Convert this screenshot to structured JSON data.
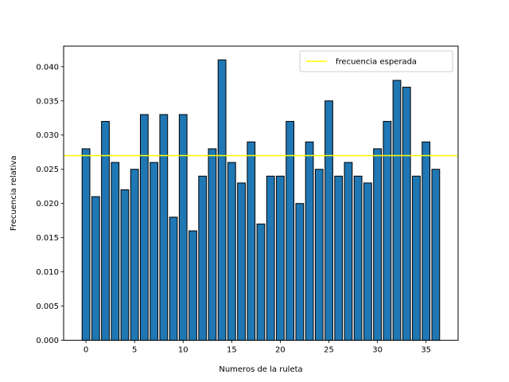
{
  "chart_data": {
    "type": "bar",
    "x": [
      0,
      1,
      2,
      3,
      4,
      5,
      6,
      7,
      8,
      9,
      10,
      11,
      12,
      13,
      14,
      15,
      16,
      17,
      18,
      19,
      20,
      21,
      22,
      23,
      24,
      25,
      26,
      27,
      28,
      29,
      30,
      31,
      32,
      33,
      34,
      35,
      36
    ],
    "values": [
      0.028,
      0.021,
      0.032,
      0.026,
      0.022,
      0.025,
      0.033,
      0.026,
      0.033,
      0.018,
      0.033,
      0.016,
      0.024,
      0.028,
      0.041,
      0.026,
      0.023,
      0.029,
      0.017,
      0.024,
      0.024,
      0.032,
      0.02,
      0.029,
      0.025,
      0.035,
      0.024,
      0.026,
      0.024,
      0.023,
      0.028,
      0.032,
      0.038,
      0.037,
      0.024,
      0.029,
      0.025
    ],
    "xlabel": "Numeros de la ruleta",
    "ylabel": "Frecuencia relativa",
    "xlim": [
      -2.3,
      38.3
    ],
    "ylim": [
      0,
      0.043
    ],
    "xticks": [
      0,
      5,
      10,
      15,
      20,
      25,
      30,
      35
    ],
    "xtick_labels": [
      "0",
      "5",
      "10",
      "15",
      "20",
      "25",
      "30",
      "35"
    ],
    "yticks": [
      0,
      0.005,
      0.01,
      0.015,
      0.02,
      0.025,
      0.03,
      0.035,
      0.04
    ],
    "ytick_labels": [
      "0.000",
      "0.005",
      "0.010",
      "0.015",
      "0.020",
      "0.025",
      "0.030",
      "0.035",
      "0.040"
    ],
    "expected_line": {
      "value": 0.027,
      "label": "frecuencia esperada",
      "color": "#ffff00"
    },
    "bar_color": "#1f77b4",
    "bar_edge_color": "#000000",
    "grid": false,
    "legend_position": "top-right"
  }
}
